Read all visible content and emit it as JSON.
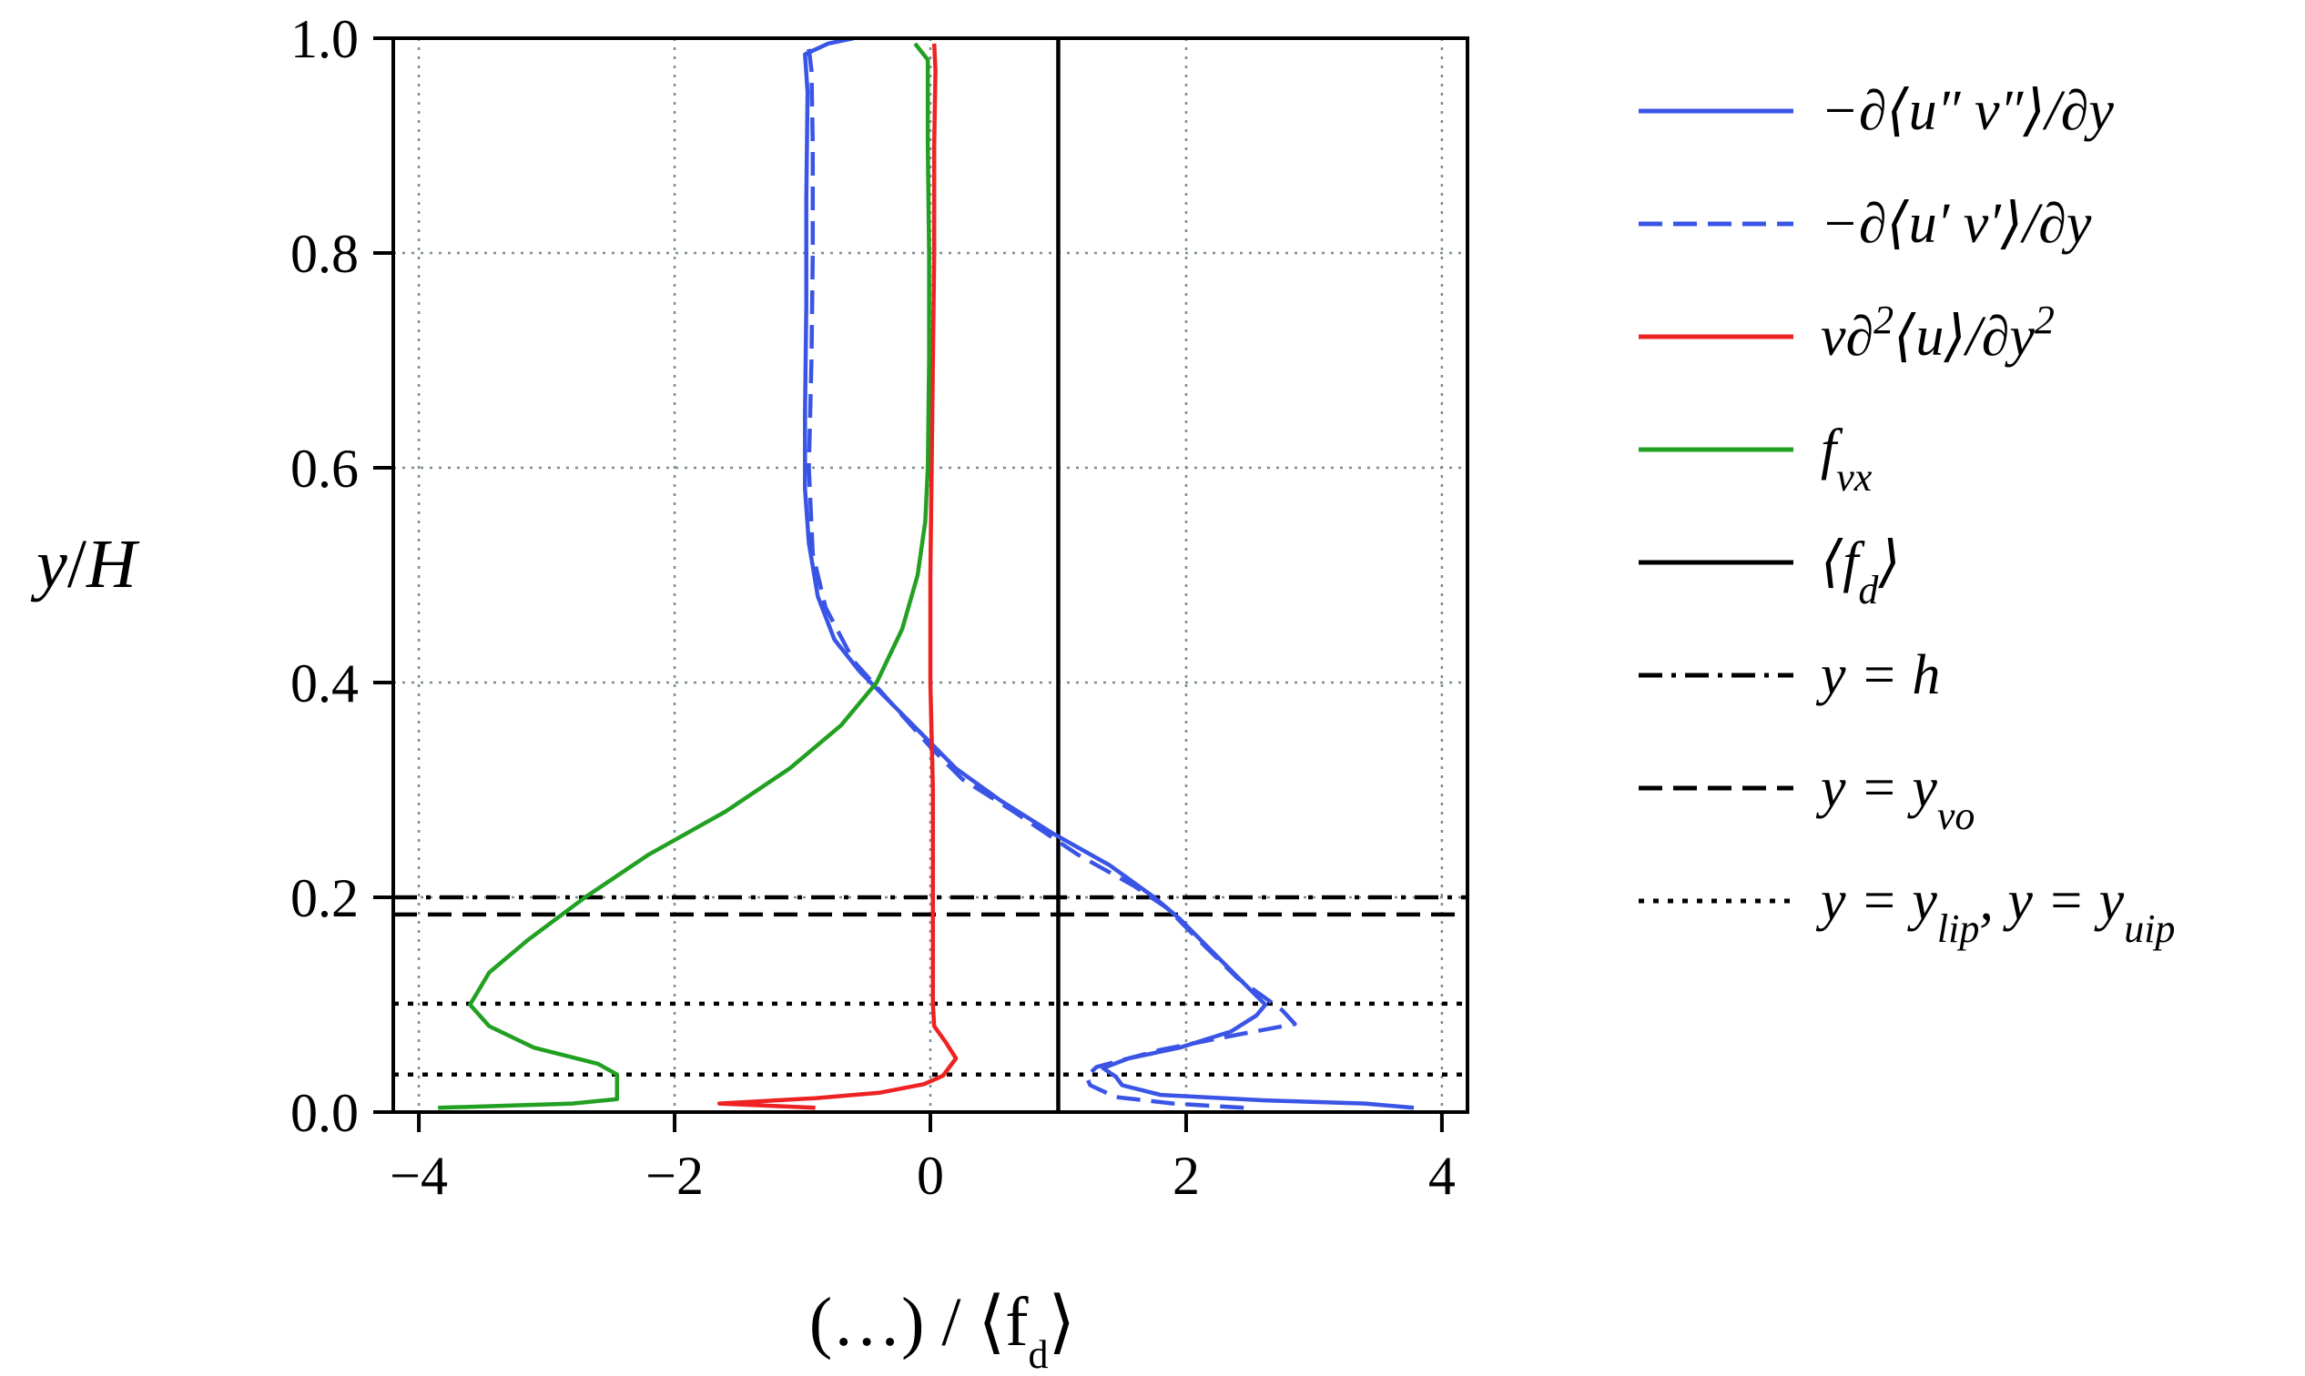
{
  "chart_data": {
    "type": "line",
    "title": "",
    "xlabel": "(…) / ⟨f_d⟩",
    "ylabel": "y/H",
    "xlim": [
      -4.2,
      4.2
    ],
    "ylim": [
      0.0,
      1.0
    ],
    "grid": true,
    "legend_position": "right, outside plot",
    "x_ticks": [
      -4,
      -2,
      0,
      2,
      4
    ],
    "x_tick_labels": [
      "−4",
      "−2",
      "0",
      "2",
      "4"
    ],
    "y_ticks": [
      0.0,
      0.2,
      0.4,
      0.6,
      0.8,
      1.0
    ],
    "y_tick_labels": [
      "0.0",
      "0.2",
      "0.4",
      "0.6",
      "0.8",
      "1.0"
    ],
    "series": [
      {
        "name": "−∂⟨u″ v″⟩/∂y",
        "color": "#3a55e6",
        "dash": "solid",
        "points": [
          [
            3.78,
            0.004
          ],
          [
            3.4,
            0.008
          ],
          [
            2.6,
            0.011
          ],
          [
            1.8,
            0.016
          ],
          [
            1.5,
            0.025
          ],
          [
            1.45,
            0.033
          ],
          [
            1.35,
            0.041
          ],
          [
            1.55,
            0.05
          ],
          [
            1.95,
            0.06
          ],
          [
            2.35,
            0.075
          ],
          [
            2.55,
            0.09
          ],
          [
            2.62,
            0.1
          ],
          [
            2.45,
            0.12
          ],
          [
            2.2,
            0.15
          ],
          [
            1.95,
            0.18
          ],
          [
            1.75,
            0.2
          ],
          [
            1.4,
            0.23
          ],
          [
            0.95,
            0.26
          ],
          [
            0.55,
            0.29
          ],
          [
            0.2,
            0.32
          ],
          [
            -0.05,
            0.35
          ],
          [
            -0.3,
            0.38
          ],
          [
            -0.55,
            0.41
          ],
          [
            -0.75,
            0.44
          ],
          [
            -0.88,
            0.48
          ],
          [
            -0.95,
            0.53
          ],
          [
            -0.98,
            0.58
          ],
          [
            -0.98,
            0.65
          ],
          [
            -0.97,
            0.75
          ],
          [
            -0.97,
            0.85
          ],
          [
            -0.96,
            0.95
          ],
          [
            -0.98,
            0.985
          ],
          [
            -0.8,
            0.995
          ],
          [
            -0.6,
            1.0
          ]
        ]
      },
      {
        "name": "−∂⟨u′ v′⟩/∂y",
        "color": "#3a55e6",
        "dash": "dashed",
        "points": [
          [
            2.45,
            0.004
          ],
          [
            1.9,
            0.008
          ],
          [
            1.45,
            0.014
          ],
          [
            1.25,
            0.025
          ],
          [
            1.22,
            0.033
          ],
          [
            1.3,
            0.042
          ],
          [
            1.8,
            0.058
          ],
          [
            2.4,
            0.072
          ],
          [
            2.85,
            0.082
          ],
          [
            2.75,
            0.095
          ],
          [
            2.4,
            0.125
          ],
          [
            2.1,
            0.16
          ],
          [
            1.85,
            0.19
          ],
          [
            1.6,
            0.21
          ],
          [
            1.15,
            0.24
          ],
          [
            0.65,
            0.28
          ],
          [
            0.25,
            0.31
          ],
          [
            0.0,
            0.34
          ],
          [
            -0.3,
            0.38
          ],
          [
            -0.6,
            0.42
          ],
          [
            -0.82,
            0.47
          ],
          [
            -0.92,
            0.52
          ],
          [
            -0.95,
            0.6
          ],
          [
            -0.93,
            0.7
          ],
          [
            -0.92,
            0.8
          ],
          [
            -0.92,
            0.9
          ],
          [
            -0.93,
            0.97
          ],
          [
            -0.95,
            0.99
          ]
        ]
      },
      {
        "name": "ν∂²⟨u⟩/∂y²",
        "color": "#ee2222",
        "dash": "solid",
        "points": [
          [
            -0.9,
            0.004
          ],
          [
            -1.65,
            0.008
          ],
          [
            -0.9,
            0.013
          ],
          [
            -0.4,
            0.018
          ],
          [
            -0.05,
            0.026
          ],
          [
            0.1,
            0.034
          ],
          [
            0.2,
            0.05
          ],
          [
            0.12,
            0.065
          ],
          [
            0.03,
            0.08
          ],
          [
            0.02,
            0.1
          ],
          [
            0.02,
            0.2
          ],
          [
            0.02,
            0.3
          ],
          [
            0.0,
            0.4
          ],
          [
            0.0,
            0.5
          ],
          [
            0.01,
            0.6
          ],
          [
            0.02,
            0.7
          ],
          [
            0.03,
            0.8
          ],
          [
            0.03,
            0.9
          ],
          [
            0.04,
            0.97
          ],
          [
            0.03,
            0.995
          ]
        ]
      },
      {
        "name": "f_vx",
        "color": "#22a022",
        "dash": "solid",
        "points": [
          [
            -3.85,
            0.004
          ],
          [
            -2.8,
            0.008
          ],
          [
            -2.45,
            0.012
          ],
          [
            -2.45,
            0.035
          ],
          [
            -2.6,
            0.045
          ],
          [
            -3.1,
            0.06
          ],
          [
            -3.45,
            0.08
          ],
          [
            -3.6,
            0.1
          ],
          [
            -3.45,
            0.13
          ],
          [
            -3.15,
            0.16
          ],
          [
            -2.7,
            0.2
          ],
          [
            -2.2,
            0.24
          ],
          [
            -1.6,
            0.28
          ],
          [
            -1.1,
            0.32
          ],
          [
            -0.7,
            0.36
          ],
          [
            -0.42,
            0.4
          ],
          [
            -0.22,
            0.45
          ],
          [
            -0.1,
            0.5
          ],
          [
            -0.04,
            0.55
          ],
          [
            -0.02,
            0.6
          ],
          [
            -0.01,
            0.7
          ],
          [
            -0.01,
            0.8
          ],
          [
            -0.02,
            0.9
          ],
          [
            -0.02,
            0.98
          ],
          [
            -0.12,
            0.995
          ]
        ]
      },
      {
        "name": "⟨f_d⟩",
        "color": "#000000",
        "dash": "solid",
        "vertical_x": 1.0
      },
      {
        "name": "y = h",
        "color": "#000000",
        "dash": "dashdot",
        "horizontal_y": 0.2
      },
      {
        "name": "y = y_vo",
        "color": "#000000",
        "dash": "dashed",
        "horizontal_y": 0.184
      },
      {
        "name": "y = y_lip, y = y_uip",
        "color": "#000000",
        "dash": "dotted",
        "horizontal_y": [
          0.035,
          0.101
        ]
      }
    ]
  }
}
